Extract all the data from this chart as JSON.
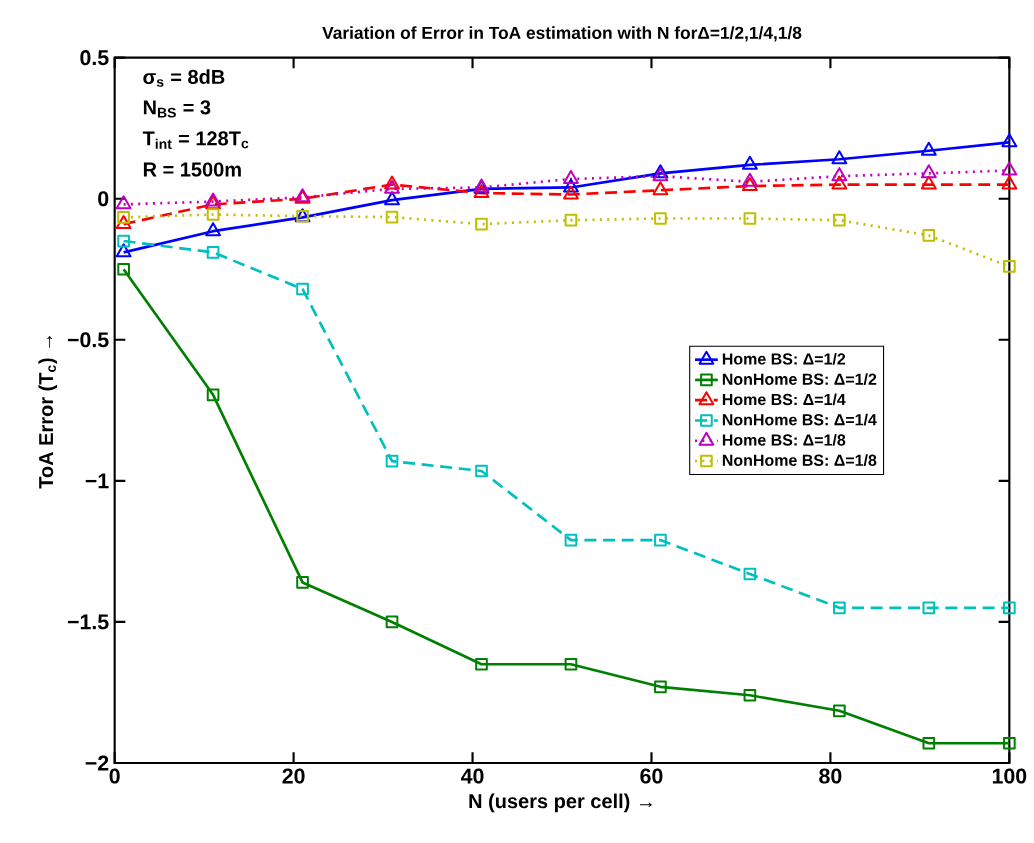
{
  "chart_data": {
    "type": "line",
    "title": "Variation of Error in ToA estimation with N forΔ=1/2,1/4,1/8",
    "xlabel": "N (users per cell) →",
    "ylabel": "ToA Error (T$_{c}$) →",
    "annotations": [
      "σ$_{s}$ = 8dB",
      "N$_{BS}$ = 3",
      "T$_{int}$ = 128T$_{c}$",
      "R = 1500m"
    ],
    "x": [
      1,
      11,
      21,
      31,
      41,
      51,
      61,
      71,
      81,
      91,
      100
    ],
    "series": [
      {
        "name": "Home BS: Δ=1/2",
        "color": "#0000ff",
        "marker": "triangle",
        "line_style": "solid",
        "values": [
          -0.19,
          -0.115,
          -0.066,
          -0.005,
          0.035,
          0.04,
          0.09,
          0.12,
          0.14,
          0.17,
          0.2
        ]
      },
      {
        "name": "NonHome BS: Δ=1/2",
        "color": "#008000",
        "marker": "square",
        "line_style": "solid",
        "values": [
          -0.25,
          -0.695,
          -1.36,
          -1.5,
          -1.65,
          -1.65,
          -1.73,
          -1.76,
          -1.815,
          -1.93,
          -1.93
        ]
      },
      {
        "name": "Home BS: Δ=1/4",
        "color": "#ff0000",
        "marker": "triangle",
        "line_style": "dashed",
        "values": [
          -0.09,
          -0.02,
          0.0,
          0.05,
          0.02,
          0.015,
          0.03,
          0.045,
          0.05,
          0.05,
          0.05
        ]
      },
      {
        "name": "NonHome BS: Δ=1/4",
        "color": "#00bfbf",
        "marker": "square",
        "line_style": "dashed",
        "values": [
          -0.15,
          -0.19,
          -0.32,
          -0.93,
          -0.965,
          -1.21,
          -1.21,
          -1.33,
          -1.45,
          -1.45,
          -1.45
        ]
      },
      {
        "name": "Home BS: Δ=1/8",
        "color": "#bf00bf",
        "marker": "triangle",
        "line_style": "dotted",
        "values": [
          -0.02,
          -0.01,
          0.005,
          0.035,
          0.04,
          0.07,
          0.08,
          0.06,
          0.08,
          0.09,
          0.1
        ]
      },
      {
        "name": "NonHome BS: Δ=1/8",
        "color": "#bfbf00",
        "marker": "square",
        "line_style": "dotted",
        "values": [
          -0.066,
          -0.056,
          -0.062,
          -0.065,
          -0.09,
          -0.076,
          -0.07,
          -0.07,
          -0.076,
          -0.13,
          -0.24
        ]
      }
    ],
    "xlim": [
      0,
      100
    ],
    "ylim": [
      -2,
      0.5
    ],
    "xticks": [
      0,
      20,
      40,
      60,
      80,
      100
    ],
    "yticks": [
      {
        "value": -2,
        "label": "−2"
      },
      {
        "value": -1.5,
        "label": "−1.5"
      },
      {
        "value": -1,
        "label": "−1"
      },
      {
        "value": -0.5,
        "label": "−0.5"
      },
      0,
      0.5
    ],
    "legend": "right",
    "grid": false
  }
}
